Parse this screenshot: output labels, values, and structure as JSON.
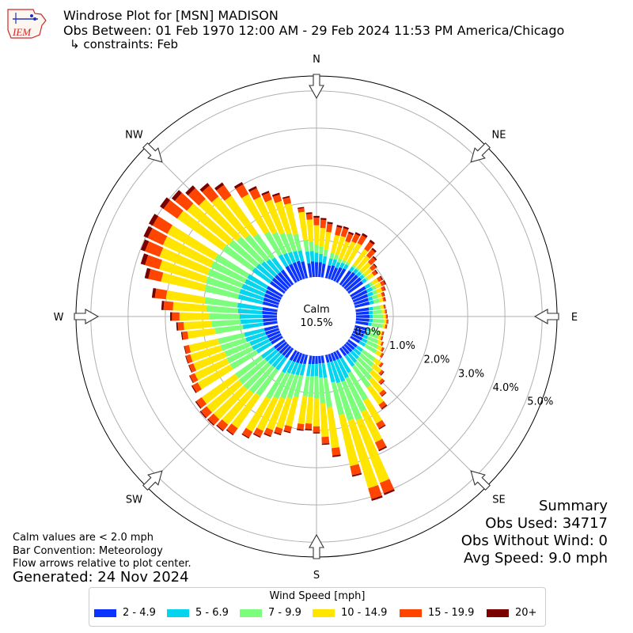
{
  "header": {
    "title": "Windrose Plot for [MSN] MADISON",
    "obs_between": "Obs Between: 01 Feb 1970 12:00 AM - 29 Feb 2024 11:53 PM America/Chicago",
    "constraints": "↳ constraints: Feb",
    "logo_text": "IEM"
  },
  "notes": {
    "calm_note": "Calm values are < 2.0 mph",
    "bar_convention": "Bar Convention: Meteorology",
    "flow_arrows": "Flow arrows relative to plot center.",
    "generated": "Generated: 24 Nov 2024"
  },
  "summary": {
    "title": "Summary",
    "obs_used": "Obs Used: 34717",
    "obs_without_wind": "Obs Without Wind: 0",
    "avg_speed": "Avg Speed: 9.0 mph"
  },
  "center": {
    "label": "Calm",
    "value": "10.5%"
  },
  "chart_data": {
    "type": "windrose",
    "compass_labels": [
      "N",
      "NE",
      "E",
      "SE",
      "S",
      "SW",
      "W",
      "NW"
    ],
    "radial_ticks": [
      "0.0%",
      "1.0%",
      "2.0%",
      "3.0%",
      "4.0%",
      "5.0%"
    ],
    "radial_tick_values": [
      0,
      1,
      2,
      3,
      4,
      5
    ],
    "rmax": 5.4,
    "directions": [
      "N",
      "NNE",
      "NE",
      "ENE",
      "E",
      "ESE",
      "SE",
      "SSE",
      "S",
      "SSW",
      "SW",
      "WSW",
      "W",
      "WNW",
      "NW",
      "NNW"
    ],
    "direction_degrees": [
      0,
      22.5,
      45,
      67.5,
      90,
      112.5,
      135,
      157.5,
      180,
      202.5,
      225,
      247.5,
      270,
      292.5,
      315,
      337.5
    ],
    "bin_edges_deg": [
      -5,
      -2.5,
      2.5,
      5
    ],
    "legend_title": "Wind Speed [mph]",
    "series": [
      {
        "name": "2 - 4.9",
        "color": "#0a33ff",
        "values": [
          [
            0.38,
            0.42,
            0.4,
            0.4,
            0.37,
            0.35,
            0.38,
            0.35,
            0.4,
            0.42,
            0.45,
            0.48,
            0.48,
            0.5,
            0.47,
            0.46,
            0.45,
            0.42,
            0.4,
            0.4
          ],
          [
            0.36,
            0.35,
            0.36,
            0.36,
            0.34,
            0.32,
            0.31,
            0.3,
            0.3,
            0.28,
            0.28,
            0.27,
            0.26,
            0.25,
            0.24,
            0.23,
            0.22,
            0.22,
            0.21,
            0.21
          ],
          [
            0.2,
            0.2,
            0.21,
            0.22,
            0.23,
            0.25,
            0.27,
            0.28,
            0.29,
            0.3,
            0.31,
            0.31,
            0.32,
            0.33,
            0.34,
            0.34,
            0.35,
            0.36,
            0.38,
            0.38
          ],
          [
            0.38,
            0.38,
            0.38,
            0.4,
            0.4,
            0.42,
            0.43,
            0.44,
            0.45,
            0.47,
            0.47,
            0.48,
            0.48,
            0.48,
            0.48,
            0.5,
            0.5,
            0.5,
            0.5,
            0.46
          ]
        ]
      },
      {
        "name": "5 - 6.9",
        "color": "#05d4ef",
        "values": [
          [
            0.32,
            0.28,
            0.25,
            0.22,
            0.2,
            0.19,
            0.17,
            0.16,
            0.14,
            0.13,
            0.13,
            0.12,
            0.12,
            0.1,
            0.12,
            0.14,
            0.16,
            0.15,
            0.12,
            0.12
          ],
          [
            0.11,
            0.1,
            0.09,
            0.09,
            0.09,
            0.08,
            0.09,
            0.12,
            0.15,
            0.17,
            0.19,
            0.22,
            0.25,
            0.3,
            0.35,
            0.45,
            0.55,
            0.6,
            0.6,
            0.55
          ],
          [
            0.4,
            0.38,
            0.33,
            0.33,
            0.32,
            0.32,
            0.32,
            0.33,
            0.34,
            0.38,
            0.4,
            0.4,
            0.4,
            0.4,
            0.42,
            0.45,
            0.5,
            0.5,
            0.55,
            0.55
          ],
          [
            0.55,
            0.6,
            0.62,
            0.65,
            0.68,
            0.68,
            0.67,
            0.65,
            0.62,
            0.6,
            0.58,
            0.55,
            0.5,
            0.45,
            0.4,
            0.35,
            0.32,
            0.3,
            0.28,
            0.3
          ]
        ]
      },
      {
        "name": "7 - 9.9",
        "color": "#7dfd7c",
        "values": [
          [
            0.32,
            0.25,
            0.22,
            0.2,
            0.18,
            0.15,
            0.13,
            0.1,
            0.08,
            0.07,
            0.06,
            0.05,
            0.05,
            0.05,
            0.06,
            0.08,
            0.1,
            0.12,
            0.14,
            0.16
          ],
          [
            0.2,
            0.25,
            0.28,
            0.3,
            0.3,
            0.28,
            0.28,
            0.3,
            0.32,
            0.35,
            0.4,
            0.45,
            0.5,
            0.6,
            0.7,
            0.85,
            1.0,
            1.1,
            1.05,
            0.9
          ],
          [
            0.8,
            0.7,
            0.6,
            0.55,
            0.55,
            0.6,
            0.65,
            0.7,
            0.75,
            0.8,
            0.85,
            0.9,
            0.92,
            0.9,
            0.85,
            0.8,
            0.75,
            0.72,
            0.7,
            0.72
          ],
          [
            0.75,
            0.78,
            0.82,
            0.85,
            0.88,
            0.92,
            0.95,
            0.98,
            1.0,
            1.0,
            0.98,
            0.95,
            0.9,
            0.85,
            0.78,
            0.7,
            0.62,
            0.55,
            0.5,
            0.45
          ]
        ]
      },
      {
        "name": "10 - 14.9",
        "color": "#ffe500",
        "values": [
          [
            0.75,
            0.6,
            0.52,
            0.5,
            0.48,
            0.5,
            0.52,
            0.5,
            0.55,
            0.58,
            0.52,
            0.4,
            0.3,
            0.22,
            0.18,
            0.17,
            0.16,
            0.14,
            0.12,
            0.1
          ],
          [
            0.09,
            0.08,
            0.07,
            0.07,
            0.07,
            0.07,
            0.08,
            0.1,
            0.12,
            0.15,
            0.2,
            0.26,
            0.35,
            0.45,
            0.55,
            0.7,
            0.9,
            1.8,
            1.9,
            1.4
          ],
          [
            1.1,
            0.9,
            0.75,
            0.72,
            0.75,
            0.8,
            0.85,
            0.9,
            0.95,
            1.0,
            1.05,
            1.08,
            1.1,
            1.12,
            1.1,
            1.0,
            0.95,
            0.9,
            0.85,
            0.8
          ],
          [
            0.75,
            0.75,
            0.8,
            0.9,
            1.05,
            1.2,
            1.3,
            1.38,
            1.42,
            1.45,
            1.48,
            1.45,
            1.4,
            1.32,
            1.25,
            1.15,
            1.05,
            0.95,
            0.9,
            0.85
          ]
        ]
      },
      {
        "name": "15 - 19.9",
        "color": "#ff4500",
        "values": [
          [
            0.1,
            0.15,
            0.2,
            0.22,
            0.22,
            0.22,
            0.22,
            0.22,
            0.22,
            0.24,
            0.24,
            0.22,
            0.18,
            0.14,
            0.1,
            0.1,
            0.1,
            0.08,
            0.06,
            0.05
          ],
          [
            0.04,
            0.04,
            0.04,
            0.04,
            0.04,
            0.04,
            0.04,
            0.04,
            0.05,
            0.05,
            0.06,
            0.07,
            0.08,
            0.1,
            0.12,
            0.15,
            0.22,
            0.3,
            0.3,
            0.25
          ],
          [
            0.2,
            0.18,
            0.16,
            0.15,
            0.15,
            0.15,
            0.15,
            0.16,
            0.17,
            0.18,
            0.2,
            0.2,
            0.2,
            0.2,
            0.18,
            0.16,
            0.14,
            0.12,
            0.12,
            0.12
          ],
          [
            0.14,
            0.16,
            0.2,
            0.25,
            0.3,
            0.35,
            0.4,
            0.42,
            0.45,
            0.45,
            0.45,
            0.42,
            0.4,
            0.38,
            0.35,
            0.3,
            0.25,
            0.2,
            0.18,
            0.16
          ]
        ]
      },
      {
        "name": "20+",
        "color": "#7a0000",
        "values": [
          [
            0.03,
            0.04,
            0.05,
            0.05,
            0.05,
            0.05,
            0.05,
            0.05,
            0.05,
            0.06,
            0.06,
            0.05,
            0.04,
            0.03,
            0.03,
            0.03,
            0.03,
            0.02,
            0.02,
            0.02
          ],
          [
            0.01,
            0.01,
            0.01,
            0.01,
            0.01,
            0.01,
            0.01,
            0.01,
            0.01,
            0.01,
            0.01,
            0.02,
            0.02,
            0.02,
            0.03,
            0.03,
            0.04,
            0.05,
            0.05,
            0.04
          ],
          [
            0.04,
            0.03,
            0.03,
            0.03,
            0.03,
            0.03,
            0.03,
            0.03,
            0.03,
            0.03,
            0.03,
            0.03,
            0.03,
            0.03,
            0.03,
            0.03,
            0.02,
            0.02,
            0.02,
            0.02
          ],
          [
            0.03,
            0.04,
            0.05,
            0.06,
            0.08,
            0.1,
            0.12,
            0.12,
            0.12,
            0.12,
            0.12,
            0.11,
            0.1,
            0.09,
            0.08,
            0.07,
            0.06,
            0.05,
            0.05,
            0.04
          ]
        ]
      }
    ]
  }
}
